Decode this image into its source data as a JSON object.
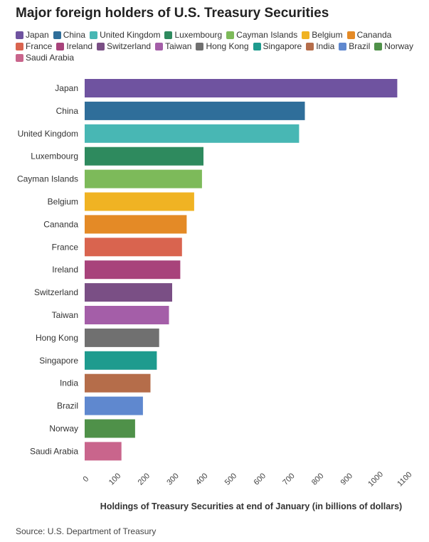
{
  "title": "Major foreign holders of U.S. Treasury Securities",
  "source": "Source: U.S. Department of Treasury",
  "chart_data": {
    "type": "bar",
    "orientation": "horizontal",
    "title": "Major foreign holders of U.S. Treasury Securities",
    "xlabel": "Holdings of Treasury Securities at end of January (in billions of dollars)",
    "ylabel": "",
    "xlim": [
      0,
      1100
    ],
    "x_ticks": [
      "0",
      "100",
      "200",
      "300",
      "400",
      "500",
      "600",
      "700",
      "800",
      "900",
      "1000",
      "1100"
    ],
    "grid": false,
    "legend_position": "top",
    "categories": [
      "Japan",
      "China",
      "United Kingdom",
      "Luxembourg",
      "Cayman Islands",
      "Belgium",
      "Cananda",
      "France",
      "Ireland",
      "Switzerland",
      "Taiwan",
      "Hong Kong",
      "Singapore",
      "India",
      "Brazil",
      "Norway",
      "Saudi Arabia"
    ],
    "values": [
      1079,
      760,
      740,
      410,
      405,
      378,
      352,
      336,
      330,
      302,
      291,
      257,
      249,
      227,
      201,
      174,
      127
    ],
    "colors": [
      "#6f53a0",
      "#2f6e9a",
      "#48b7b4",
      "#2e8a5e",
      "#7dba5a",
      "#f0b323",
      "#e48a26",
      "#d9644f",
      "#a8437b",
      "#7a4f85",
      "#a45ea8",
      "#707070",
      "#1e9b8e",
      "#b56d4a",
      "#5f88cf",
      "#4f9149",
      "#c9658c"
    ]
  }
}
